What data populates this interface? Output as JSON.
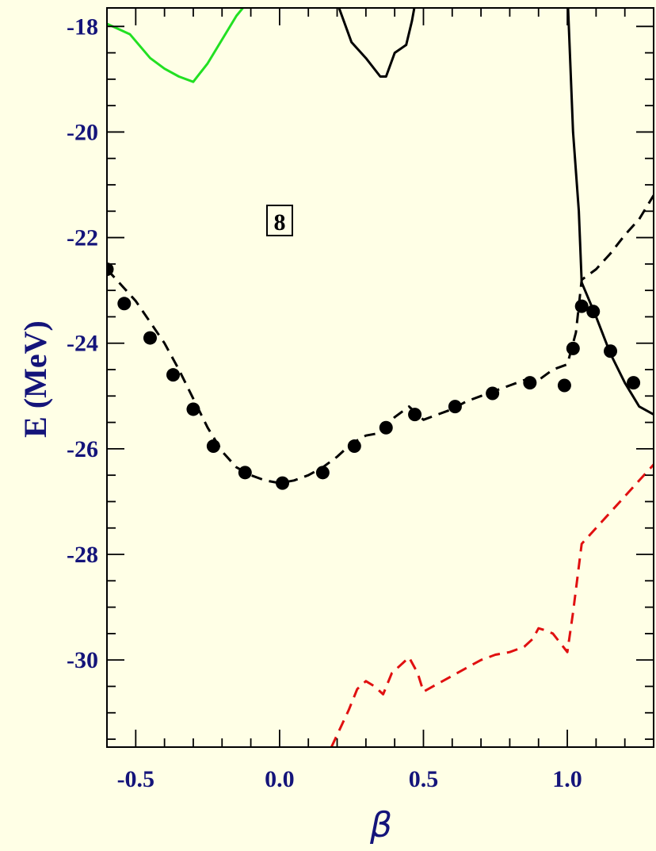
{
  "chart_data": {
    "type": "line",
    "xlabel": "β",
    "ylabel": "E (MeV)",
    "xlim": [
      -0.6,
      1.3
    ],
    "ylim": [
      -31.65,
      -17.65
    ],
    "x_ticks": [
      -0.5,
      0.0,
      0.5,
      1.0
    ],
    "x_tick_labels": [
      "-0.5",
      "0.0",
      "0.5",
      "1.0"
    ],
    "y_ticks": [
      -18,
      -20,
      -22,
      -24,
      -26,
      -28,
      -30
    ],
    "y_tick_labels": [
      "-18",
      "-20",
      "-22",
      "-24",
      "-26",
      "-28",
      "-30"
    ],
    "annotation": "8",
    "colors": {
      "background": "#ffffe6",
      "axis_text": "#14147a",
      "black_curves": "#000000",
      "green_curve": "#22e022",
      "red_curve": "#e01010"
    },
    "series": [
      {
        "style": "dashed",
        "color": "#000000",
        "x": [
          -0.6,
          -0.55,
          -0.5,
          -0.45,
          -0.4,
          -0.35,
          -0.3,
          -0.25,
          -0.2,
          -0.15,
          -0.1,
          -0.05,
          0.0,
          0.05,
          0.1,
          0.15,
          0.2,
          0.25,
          0.3,
          0.35,
          0.4,
          0.45,
          0.5,
          0.55,
          0.6,
          0.65,
          0.7,
          0.75,
          0.8,
          0.85,
          0.9,
          0.95,
          1.0,
          1.03,
          1.05,
          1.1,
          1.15,
          1.2,
          1.25,
          1.3
        ],
        "y": [
          -22.6,
          -22.9,
          -23.2,
          -23.6,
          -24.0,
          -24.5,
          -25.05,
          -25.6,
          -26.05,
          -26.35,
          -26.5,
          -26.6,
          -26.65,
          -26.6,
          -26.5,
          -26.35,
          -26.15,
          -25.9,
          -25.75,
          -25.7,
          -25.4,
          -25.2,
          -25.45,
          -25.35,
          -25.25,
          -25.1,
          -25.0,
          -24.9,
          -24.8,
          -24.7,
          -24.7,
          -24.5,
          -24.4,
          -23.8,
          -22.8,
          -22.6,
          -22.3,
          -21.95,
          -21.65,
          -21.2
        ]
      },
      {
        "style": "markers",
        "color": "#000000",
        "x": [
          -0.6,
          -0.54,
          -0.45,
          -0.37,
          -0.3,
          -0.23,
          -0.12,
          0.01,
          0.15,
          0.26,
          0.37,
          0.47,
          0.61,
          0.74,
          0.87,
          0.99,
          1.02,
          1.05,
          1.09,
          1.15,
          1.23
        ],
        "y": [
          -22.6,
          -23.25,
          -23.9,
          -24.6,
          -25.25,
          -25.95,
          -26.45,
          -26.65,
          -26.45,
          -25.95,
          -25.6,
          -25.35,
          -25.2,
          -24.95,
          -24.75,
          -24.8,
          -24.1,
          -23.3,
          -23.4,
          -24.15,
          -24.75
        ]
      },
      {
        "style": "solid",
        "color": "#000000",
        "x": [
          0.0,
          0.15,
          0.2,
          0.25,
          0.3,
          0.35,
          0.37,
          0.4,
          0.44,
          0.46,
          0.48
        ],
        "y": [
          -15.5,
          -17.0,
          -17.55,
          -18.3,
          -18.6,
          -18.95,
          -18.95,
          -18.5,
          -18.35,
          -17.9,
          -17.3
        ]
      },
      {
        "style": "solid",
        "color": "#000000",
        "x": [
          0.98,
          1.0,
          1.02,
          1.04,
          1.05,
          1.1,
          1.15,
          1.2,
          1.25,
          1.3
        ],
        "y": [
          -16.3,
          -17.3,
          -20.0,
          -21.5,
          -22.85,
          -23.5,
          -24.2,
          -24.75,
          -25.2,
          -25.35
        ]
      },
      {
        "style": "solid",
        "color": "#22e022",
        "x": [
          -0.6,
          -0.52,
          -0.45,
          -0.4,
          -0.35,
          -0.3,
          -0.25,
          -0.2,
          -0.15,
          -0.12
        ],
        "y": [
          -17.95,
          -18.15,
          -18.6,
          -18.8,
          -18.95,
          -19.05,
          -18.7,
          -18.25,
          -17.8,
          -17.6
        ]
      },
      {
        "style": "dashed",
        "color": "#e01010",
        "x": [
          0.18,
          0.21,
          0.24,
          0.27,
          0.3,
          0.33,
          0.36,
          0.39,
          0.42,
          0.45,
          0.48,
          0.5,
          0.55,
          0.6,
          0.65,
          0.7,
          0.75,
          0.8,
          0.85,
          0.88,
          0.9,
          0.93,
          0.95,
          1.0,
          1.02,
          1.05,
          1.1,
          1.15,
          1.2,
          1.25,
          1.3
        ],
        "y": [
          -31.65,
          -31.3,
          -30.95,
          -30.55,
          -30.4,
          -30.5,
          -30.65,
          -30.25,
          -30.1,
          -29.95,
          -30.25,
          -30.6,
          -30.45,
          -30.3,
          -30.15,
          -30.0,
          -29.9,
          -29.85,
          -29.75,
          -29.6,
          -29.4,
          -29.45,
          -29.5,
          -29.85,
          -29.1,
          -27.8,
          -27.5,
          -27.2,
          -26.9,
          -26.6,
          -26.3
        ]
      }
    ]
  }
}
